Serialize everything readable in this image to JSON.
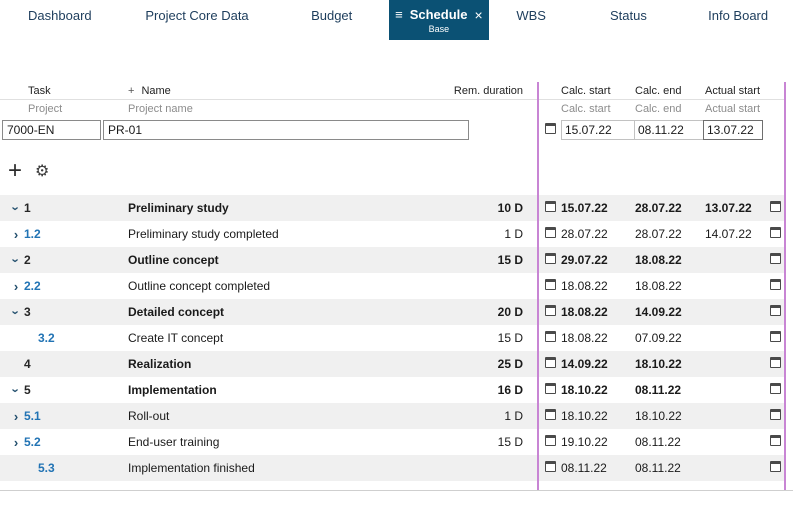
{
  "icons": {
    "menu": "≡",
    "close": "×",
    "add": "+",
    "settings": "⚙",
    "chevron": "›",
    "name_plus": "+"
  },
  "colors": {
    "active_tab_bg": "#0b5174",
    "splitter": "#c885d4",
    "link_blue": "#2173b4",
    "alt_row": "#f0f0f0"
  },
  "tabs": [
    {
      "label": "Dashboard"
    },
    {
      "label": "Project Core Data"
    },
    {
      "label": "Budget"
    },
    {
      "label": "Schedule",
      "sublabel": "Base",
      "active": true
    },
    {
      "label": "WBS"
    },
    {
      "label": "Status"
    },
    {
      "label": "Info Board"
    }
  ],
  "header": {
    "task": "Task",
    "name": "Name",
    "rem_duration": "Rem. duration",
    "calc_start": "Calc. start",
    "calc_end": "Calc. end",
    "actual_start": "Actual start"
  },
  "subheader": {
    "project": "Project",
    "project_name": "Project name",
    "calc_start": "Calc. start",
    "calc_end": "Calc. end",
    "actual_start": "Actual start"
  },
  "project_row": {
    "id": "7000-EN",
    "name": "PR-01",
    "calc_start": "15.07.22",
    "calc_end": "08.11.22",
    "actual_start": "13.07.22"
  },
  "rows": [
    {
      "task": "1",
      "name": "Preliminary study",
      "duration": "10 D",
      "calc_start": "15.07.22",
      "calc_end": "28.07.22",
      "actual_start": "13.07.22",
      "chevron": "down",
      "parent": true,
      "indent": false
    },
    {
      "task": "1.2",
      "name": "Preliminary study completed",
      "duration": "1 D",
      "calc_start": "28.07.22",
      "calc_end": "28.07.22",
      "actual_start": "14.07.22",
      "chevron": "right",
      "parent": false,
      "indent": false
    },
    {
      "task": "2",
      "name": "Outline concept",
      "duration": "15 D",
      "calc_start": "29.07.22",
      "calc_end": "18.08.22",
      "actual_start": "",
      "chevron": "down",
      "parent": true,
      "indent": false
    },
    {
      "task": "2.2",
      "name": "Outline concept completed",
      "duration": "",
      "calc_start": "18.08.22",
      "calc_end": "18.08.22",
      "actual_start": "",
      "chevron": "right",
      "parent": false,
      "indent": false
    },
    {
      "task": "3",
      "name": "Detailed concept",
      "duration": "20 D",
      "calc_start": "18.08.22",
      "calc_end": "14.09.22",
      "actual_start": "",
      "chevron": "down",
      "parent": true,
      "indent": false
    },
    {
      "task": "3.2",
      "name": "Create IT concept",
      "duration": "15 D",
      "calc_start": "18.08.22",
      "calc_end": "07.09.22",
      "actual_start": "",
      "chevron": "none",
      "parent": false,
      "indent": true
    },
    {
      "task": "4",
      "name": "Realization",
      "duration": "25 D",
      "calc_start": "14.09.22",
      "calc_end": "18.10.22",
      "actual_start": "",
      "chevron": "none",
      "parent": true,
      "indent": false
    },
    {
      "task": "5",
      "name": "Implementation",
      "duration": "16 D",
      "calc_start": "18.10.22",
      "calc_end": "08.11.22",
      "actual_start": "",
      "chevron": "down",
      "parent": true,
      "indent": false
    },
    {
      "task": "5.1",
      "name": "Roll-out",
      "duration": "1 D",
      "calc_start": "18.10.22",
      "calc_end": "18.10.22",
      "actual_start": "",
      "chevron": "right",
      "parent": false,
      "indent": false
    },
    {
      "task": "5.2",
      "name": "End-user training",
      "duration": "15 D",
      "calc_start": "19.10.22",
      "calc_end": "08.11.22",
      "actual_start": "",
      "chevron": "right",
      "parent": false,
      "indent": false
    },
    {
      "task": "5.3",
      "name": "Implementation finished",
      "duration": "",
      "calc_start": "08.11.22",
      "calc_end": "08.11.22",
      "actual_start": "",
      "chevron": "none",
      "parent": false,
      "indent": true
    }
  ]
}
